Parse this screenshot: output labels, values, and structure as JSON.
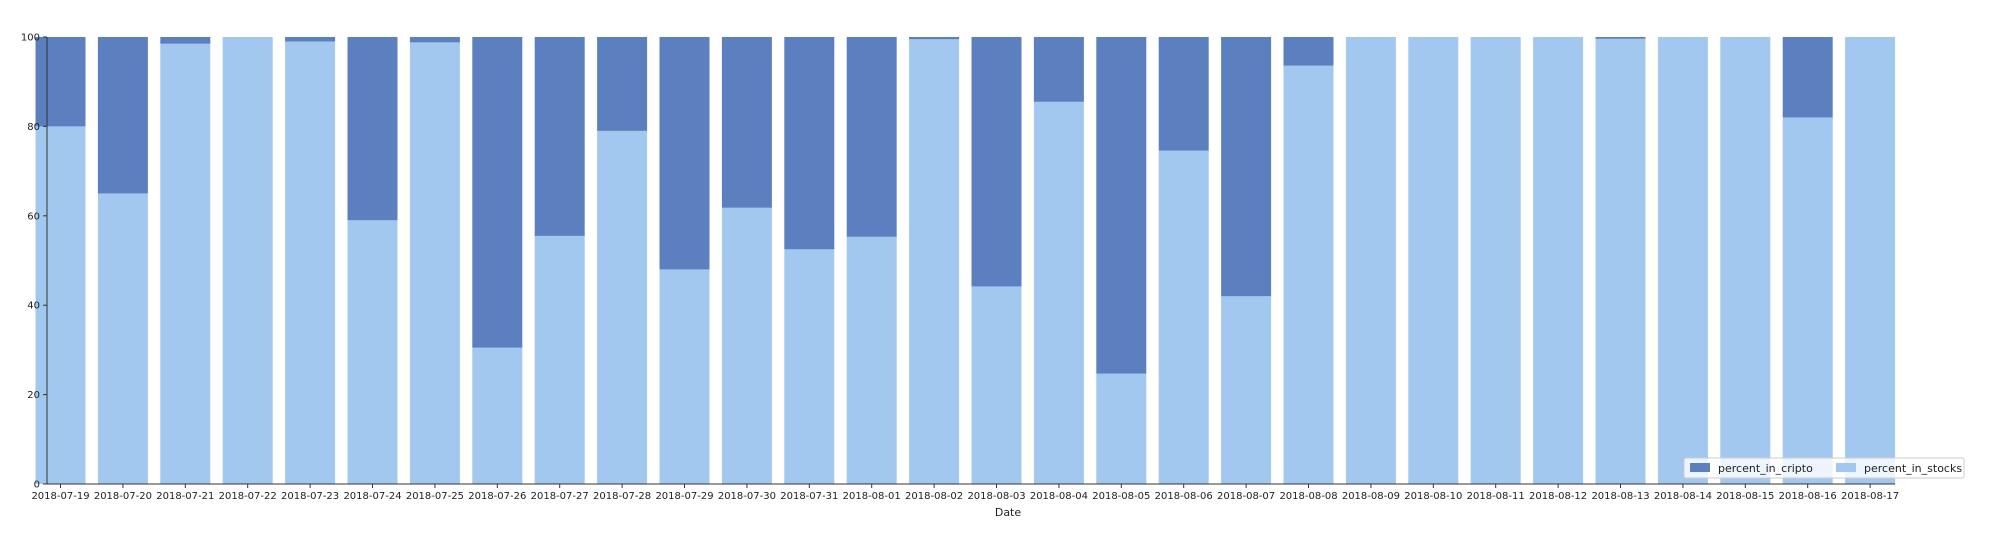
{
  "colors": {
    "percent_in_cripto": "#5b7fbf",
    "percent_in_stocks": "#a2c8f0",
    "axis": "#333333",
    "legend_border": "#cccccc"
  },
  "chart_data": {
    "type": "bar",
    "stacked": true,
    "xlabel": "Date",
    "ylabel": "",
    "ylim": [
      0,
      100
    ],
    "yticks": [
      0,
      20,
      40,
      60,
      80,
      100
    ],
    "grid": false,
    "legend_position": "bottom-right",
    "categories": [
      "2018-07-19",
      "2018-07-20",
      "2018-07-21",
      "2018-07-22",
      "2018-07-23",
      "2018-07-24",
      "2018-07-25",
      "2018-07-26",
      "2018-07-27",
      "2018-07-28",
      "2018-07-29",
      "2018-07-30",
      "2018-07-31",
      "2018-08-01",
      "2018-08-02",
      "2018-08-03",
      "2018-08-04",
      "2018-08-05",
      "2018-08-06",
      "2018-08-07",
      "2018-08-08",
      "2018-08-09",
      "2018-08-10",
      "2018-08-11",
      "2018-08-12",
      "2018-08-13",
      "2018-08-14",
      "2018-08-15",
      "2018-08-16",
      "2018-08-17"
    ],
    "series": [
      {
        "name": "percent_in_stocks",
        "values": [
          80,
          65,
          98.5,
          100,
          99,
          59,
          98.8,
          30.5,
          55.5,
          79,
          48,
          61.8,
          52.5,
          55.3,
          99.5,
          44.2,
          85.5,
          24.7,
          74.6,
          42,
          93.6,
          100,
          100,
          100,
          100,
          99.6,
          100,
          100,
          82,
          100
        ]
      },
      {
        "name": "percent_in_cripto",
        "values": [
          20,
          35,
          1.5,
          0,
          1,
          41,
          1.2,
          69.5,
          44.5,
          21,
          52,
          38.2,
          47.5,
          44.7,
          0.5,
          55.8,
          14.5,
          75.3,
          25.4,
          58,
          6.4,
          0,
          0,
          0,
          0,
          0.4,
          0,
          0,
          18,
          0
        ]
      }
    ]
  },
  "legend": {
    "items": [
      "percent_in_cripto",
      "percent_in_stocks"
    ]
  }
}
